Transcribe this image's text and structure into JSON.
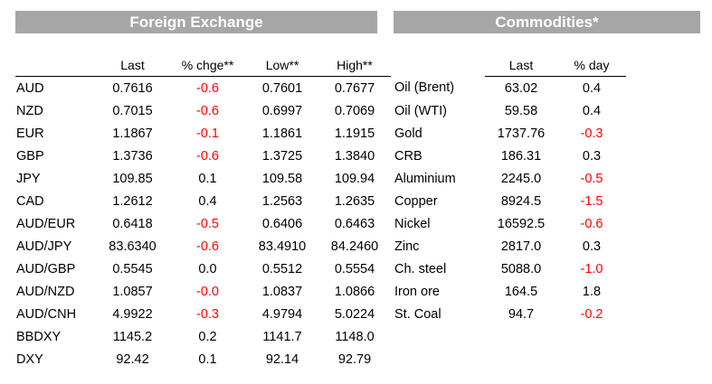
{
  "fx": {
    "title": "Foreign Exchange",
    "headers": [
      "",
      "Last",
      "% chge**",
      "Low**",
      "High**"
    ],
    "rows": [
      {
        "name": "AUD",
        "last": "0.7616",
        "chg": "-0.6",
        "low": "0.7601",
        "high": "0.7677",
        "neg": true
      },
      {
        "name": "NZD",
        "last": "0.7015",
        "chg": "-0.6",
        "low": "0.6997",
        "high": "0.7069",
        "neg": true
      },
      {
        "name": "EUR",
        "last": "1.1867",
        "chg": "-0.1",
        "low": "1.1861",
        "high": "1.1915",
        "neg": true
      },
      {
        "name": "GBP",
        "last": "1.3736",
        "chg": "-0.6",
        "low": "1.3725",
        "high": "1.3840",
        "neg": true
      },
      {
        "name": "JPY",
        "last": "109.85",
        "chg": "0.1",
        "low": "109.58",
        "high": "109.94",
        "neg": false
      },
      {
        "name": "CAD",
        "last": "1.2612",
        "chg": "0.4",
        "low": "1.2563",
        "high": "1.2635",
        "neg": false
      },
      {
        "name": "AUD/EUR",
        "last": "0.6418",
        "chg": "-0.5",
        "low": "0.6406",
        "high": "0.6463",
        "neg": true
      },
      {
        "name": "AUD/JPY",
        "last": "83.6340",
        "chg": "-0.6",
        "low": "83.4910",
        "high": "84.2460",
        "neg": true
      },
      {
        "name": "AUD/GBP",
        "last": "0.5545",
        "chg": "0.0",
        "low": "0.5512",
        "high": "0.5554",
        "neg": false
      },
      {
        "name": "AUD/NZD",
        "last": "1.0857",
        "chg": "-0.0",
        "low": "1.0837",
        "high": "1.0866",
        "neg": true
      },
      {
        "name": "AUD/CNH",
        "last": "4.9922",
        "chg": "-0.3",
        "low": "4.9794",
        "high": "5.0224",
        "neg": true
      },
      {
        "name": "BBDXY",
        "last": "1145.2",
        "chg": "0.2",
        "low": "1141.7",
        "high": "1148.0",
        "neg": false
      },
      {
        "name": "DXY",
        "last": "92.42",
        "chg": "0.1",
        "low": "92.14",
        "high": "92.79",
        "neg": false
      }
    ]
  },
  "commodities": {
    "title": "Commodities*",
    "headers": [
      "",
      "Last",
      "% day"
    ],
    "rows": [
      {
        "name": "Oil (Brent)",
        "last": "63.02",
        "day": "0.4",
        "neg": false
      },
      {
        "name": "Oil (WTI)",
        "last": "59.58",
        "day": "0.4",
        "neg": false
      },
      {
        "name": "Gold",
        "last": "1737.76",
        "day": "-0.3",
        "neg": true
      },
      {
        "name": "CRB",
        "last": "186.31",
        "day": "0.3",
        "neg": false
      },
      {
        "name": "Aluminium",
        "last": "2245.0",
        "day": "-0.5",
        "neg": true
      },
      {
        "name": "Copper",
        "last": "8924.5",
        "day": "-1.5",
        "neg": true
      },
      {
        "name": "Nickel",
        "last": "16592.5",
        "day": "-0.6",
        "neg": true
      },
      {
        "name": "Zinc",
        "last": "2817.0",
        "day": "0.3",
        "neg": false
      },
      {
        "name": "Ch. steel",
        "last": "5088.0",
        "day": "-1.0",
        "neg": true
      },
      {
        "name": "Iron ore",
        "last": "164.5",
        "day": "1.8",
        "neg": false
      },
      {
        "name": "St. Coal",
        "last": "94.7",
        "day": "-0.2",
        "neg": true
      }
    ]
  },
  "colors": {
    "banner": "#a6a6a6",
    "negative": "#ff0000"
  }
}
